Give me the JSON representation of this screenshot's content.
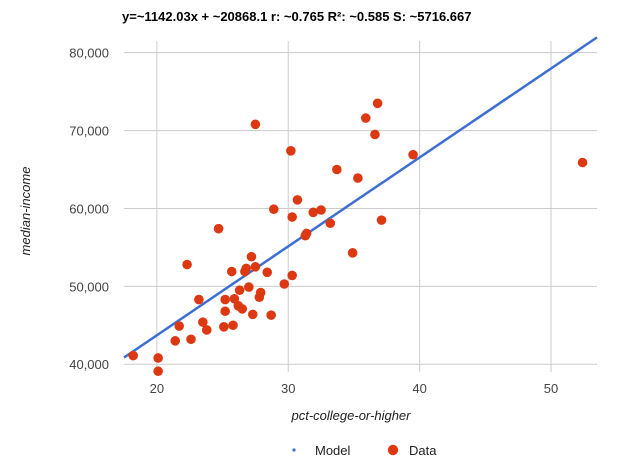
{
  "chart_data": {
    "type": "scatter",
    "stats_text": "y=~1142.03x +  ~20868.1    r:  ~0.765    R²:  ~0.585    S:  ~5716.667",
    "model": {
      "slope": 1142.03,
      "intercept": 20868.1,
      "color": "#3c6fd1"
    },
    "xlabel": "pct-college-or-higher",
    "ylabel": "median-income",
    "xlim": [
      17.5,
      53.5
    ],
    "ylim": [
      39000,
      81500
    ],
    "x_ticks": [
      20,
      30,
      40,
      50
    ],
    "x_tick_labels": [
      "20",
      "30",
      "40",
      "50"
    ],
    "y_ticks": [
      40000,
      50000,
      60000,
      70000,
      80000
    ],
    "y_tick_labels": [
      "40,000",
      "50,000",
      "60,000",
      "70,000",
      "80,000"
    ],
    "grid": true,
    "legend_position": "bottom",
    "legend": [
      {
        "label": "Model",
        "marker": "dot",
        "color": "#3c6fd1"
      },
      {
        "label": "Data",
        "marker": "circle",
        "color": "#dc3912"
      }
    ],
    "series": [
      {
        "name": "Data",
        "color": "#dc3912",
        "points": [
          [
            18.2,
            41100
          ],
          [
            20.1,
            40800
          ],
          [
            20.1,
            39100
          ],
          [
            21.4,
            43000
          ],
          [
            21.7,
            44900
          ],
          [
            22.3,
            52800
          ],
          [
            22.6,
            43200
          ],
          [
            23.2,
            48300
          ],
          [
            23.5,
            45400
          ],
          [
            23.8,
            44400
          ],
          [
            24.7,
            57400
          ],
          [
            25.1,
            44800
          ],
          [
            25.2,
            48300
          ],
          [
            25.2,
            46800
          ],
          [
            25.7,
            51900
          ],
          [
            25.9,
            48400
          ],
          [
            25.8,
            45000
          ],
          [
            26.2,
            47500
          ],
          [
            26.3,
            49500
          ],
          [
            26.5,
            47100
          ],
          [
            26.7,
            51900
          ],
          [
            26.8,
            52300
          ],
          [
            27.0,
            49900
          ],
          [
            27.2,
            53800
          ],
          [
            27.3,
            46400
          ],
          [
            27.5,
            52500
          ],
          [
            27.5,
            70800
          ],
          [
            27.8,
            48600
          ],
          [
            27.9,
            49200
          ],
          [
            28.4,
            51800
          ],
          [
            28.7,
            46300
          ],
          [
            28.9,
            59900
          ],
          [
            29.7,
            50300
          ],
          [
            30.2,
            67400
          ],
          [
            30.3,
            58900
          ],
          [
            30.3,
            51400
          ],
          [
            30.7,
            61100
          ],
          [
            31.3,
            56500
          ],
          [
            31.4,
            56800
          ],
          [
            31.9,
            59500
          ],
          [
            32.5,
            59800
          ],
          [
            33.2,
            58100
          ],
          [
            33.7,
            65000
          ],
          [
            34.9,
            54300
          ],
          [
            35.3,
            63900
          ],
          [
            35.9,
            71600
          ],
          [
            36.6,
            69500
          ],
          [
            36.8,
            73500
          ],
          [
            37.1,
            58500
          ],
          [
            39.5,
            66900
          ],
          [
            52.4,
            65900
          ]
        ]
      }
    ]
  }
}
